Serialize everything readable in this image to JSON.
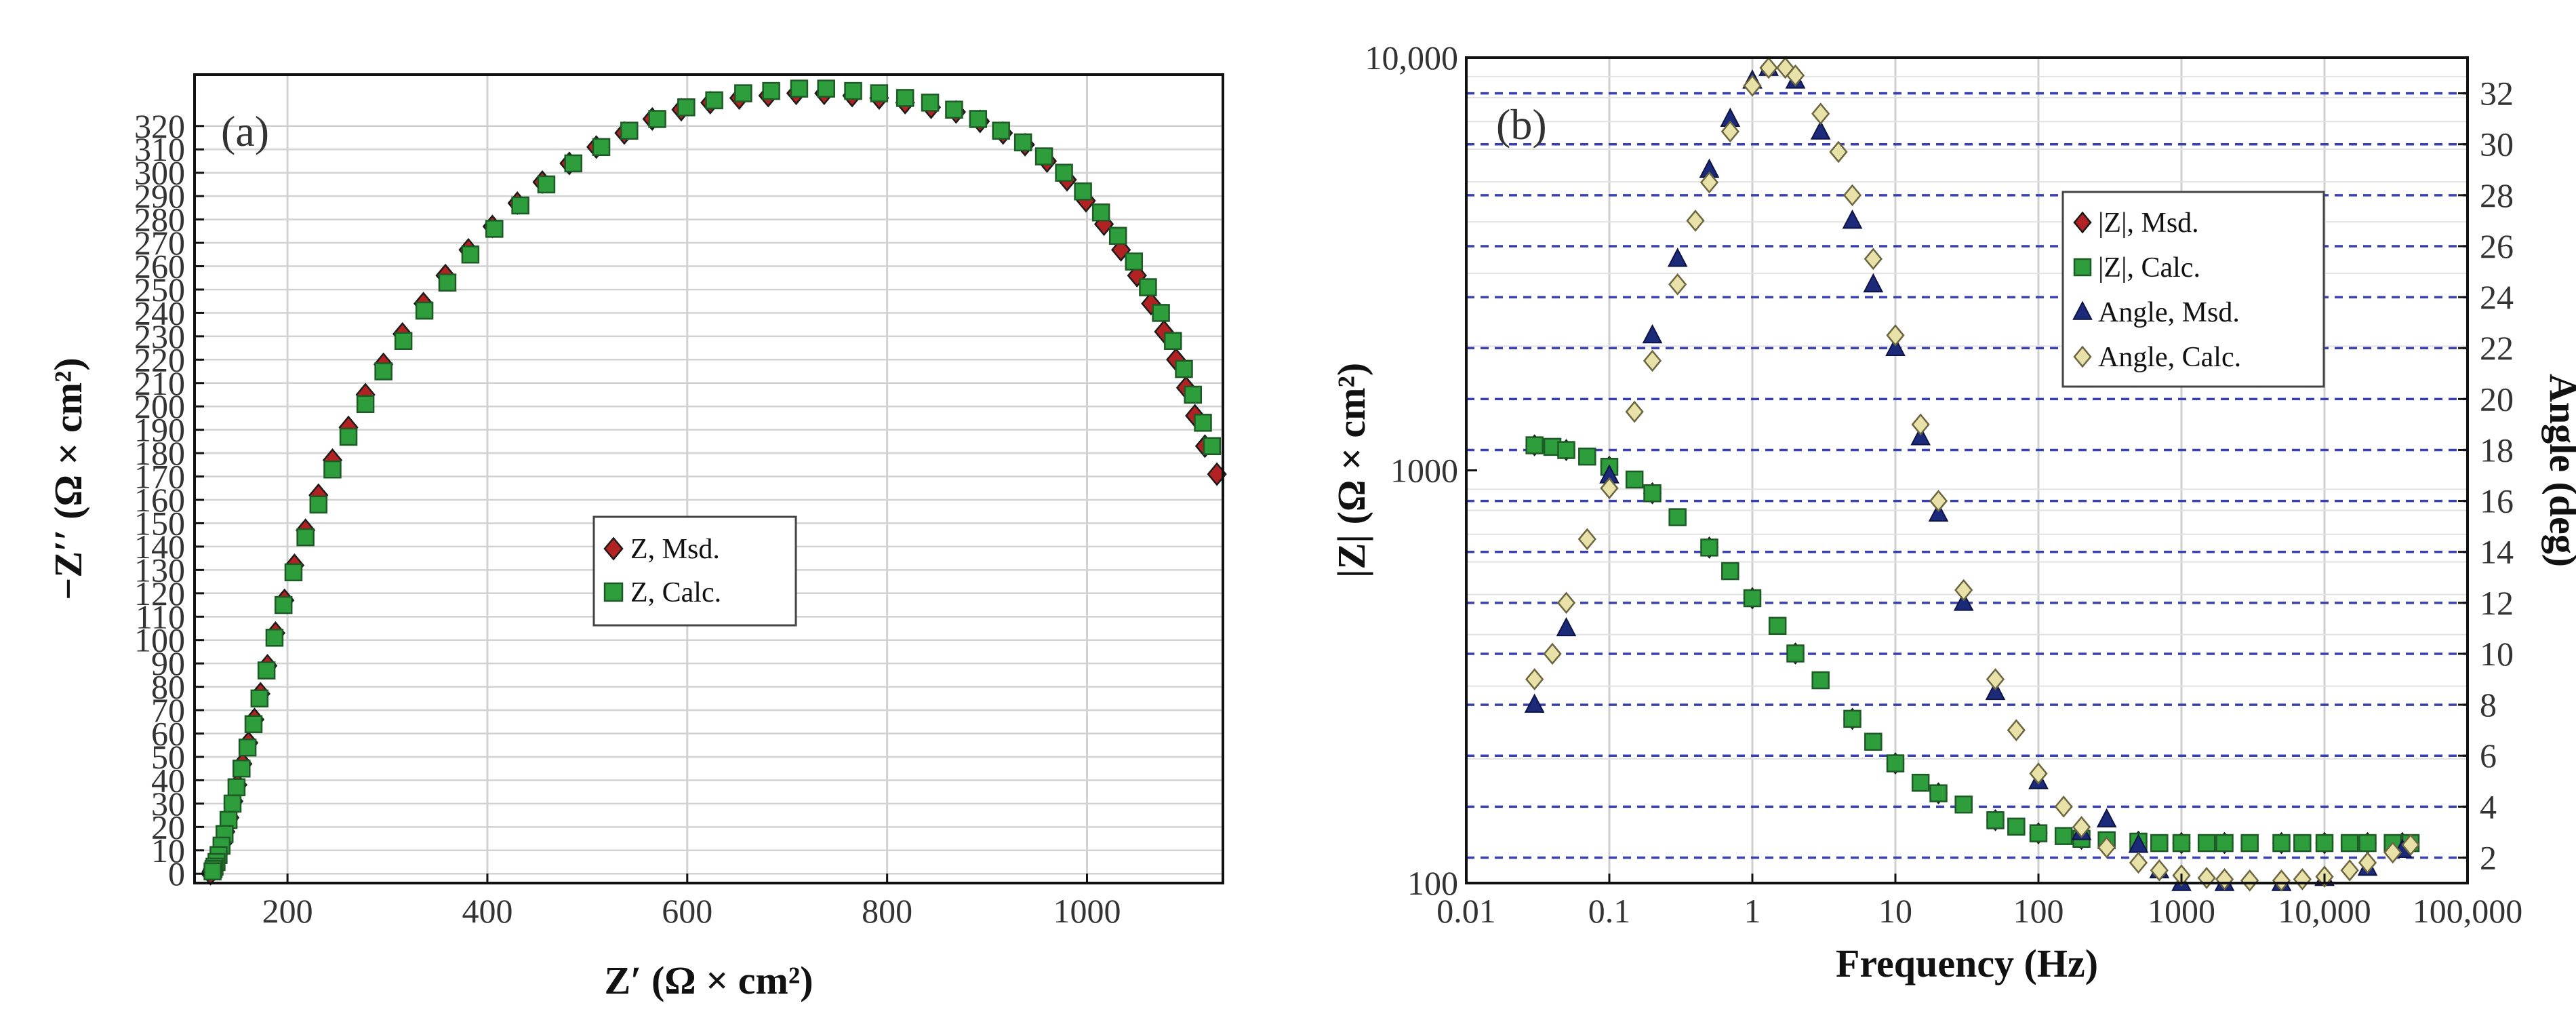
{
  "chart_data": [
    {
      "type": "scatter",
      "panel_label": "(a)",
      "xlabel": "Z′ (Ω × cm²)",
      "ylabel": "−Z′′ (Ω × cm²)",
      "xlim": [
        107,
        1136
      ],
      "ylim": [
        -4,
        342
      ],
      "xticks": [
        200,
        400,
        600,
        800,
        1000
      ],
      "xtick_labels": [
        "200",
        "400",
        "600",
        "800",
        "1000"
      ],
      "yticks": [
        0,
        10,
        20,
        30,
        40,
        50,
        60,
        70,
        80,
        90,
        100,
        110,
        120,
        130,
        140,
        150,
        160,
        170,
        180,
        190,
        200,
        210,
        220,
        230,
        240,
        250,
        260,
        270,
        280,
        290,
        300,
        310,
        320
      ],
      "ytick_labels": [
        "0",
        "10",
        "20",
        "30",
        "40",
        "50",
        "60",
        "70",
        "80",
        "90",
        "100",
        "110",
        "120",
        "130",
        "140",
        "150",
        "160",
        "170",
        "180",
        "190",
        "200",
        "210",
        "220",
        "230",
        "240",
        "250",
        "260",
        "270",
        "280",
        "290",
        "300",
        "310",
        "320"
      ],
      "grid": true,
      "legend_position": "center",
      "series": [
        {
          "name": "Z, Msd.",
          "marker": "diamond",
          "color": "#b22222",
          "x": [
            1130,
            1118,
            1108,
            1099,
            1089,
            1077,
            1064,
            1050,
            1034,
            1017,
            999,
            980,
            960,
            938,
            916,
            893,
            869,
            844,
            818,
            792,
            765,
            737,
            709,
            681,
            652,
            623,
            594,
            565,
            537,
            509,
            482,
            455,
            430,
            405,
            381,
            358,
            336,
            315,
            296,
            278,
            261,
            245,
            231,
            218,
            207,
            197,
            188,
            180,
            173,
            167,
            161,
            155,
            150,
            146,
            142,
            138,
            135,
            132,
            130,
            128,
            126,
            125,
            124,
            123
          ],
          "y": [
            171,
            183,
            196,
            208,
            220,
            232,
            244,
            256,
            267,
            278,
            288,
            297,
            305,
            312,
            317,
            322,
            326,
            328,
            330,
            332,
            333,
            334,
            334,
            333,
            332,
            330,
            327,
            323,
            317,
            311,
            304,
            296,
            287,
            277,
            267,
            256,
            244,
            231,
            218,
            205,
            191,
            177,
            162,
            147,
            132,
            117,
            103,
            89,
            77,
            66,
            56,
            47,
            38,
            31,
            24,
            18,
            13,
            9,
            6,
            4,
            3,
            2,
            1,
            0
          ]
        },
        {
          "name": "Z, Calc.",
          "marker": "square",
          "color": "#2e9e3c",
          "x": [
            1125,
            1116,
            1106,
            1097,
            1086,
            1074,
            1061,
            1047,
            1031,
            1014,
            996,
            977,
            957,
            936,
            914,
            891,
            867,
            843,
            818,
            792,
            766,
            739,
            712,
            684,
            656,
            627,
            599,
            570,
            542,
            514,
            486,
            459,
            433,
            407,
            383,
            360,
            337,
            316,
            296,
            278,
            261,
            245,
            231,
            218,
            206,
            196,
            187,
            179,
            172,
            166,
            160,
            154,
            149,
            145,
            141,
            137,
            134,
            131,
            129,
            127,
            126,
            125
          ],
          "y": [
            183,
            193,
            205,
            216,
            228,
            240,
            251,
            262,
            273,
            283,
            292,
            300,
            307,
            313,
            318,
            323,
            327,
            330,
            332,
            334,
            335,
            336,
            336,
            335,
            334,
            331,
            328,
            323,
            318,
            311,
            304,
            295,
            286,
            276,
            265,
            253,
            241,
            228,
            215,
            201,
            187,
            173,
            158,
            144,
            129,
            115,
            101,
            87,
            75,
            64,
            54,
            45,
            37,
            30,
            23,
            17,
            12,
            8,
            5,
            3,
            2,
            1
          ]
        }
      ]
    },
    {
      "type": "scatter",
      "panel_label": "(b)",
      "xlabel": "Frequency (Hz)",
      "ylabel": "|Z| (Ω × cm²)",
      "y2label": "Angle (deg)",
      "xscale": "log",
      "yscale": "log",
      "xlim": [
        0.01,
        100000
      ],
      "ylim": [
        100,
        10000
      ],
      "y2lim": [
        1,
        33.4
      ],
      "xticks": [
        0.01,
        0.1,
        1,
        10,
        100,
        1000,
        10000,
        100000
      ],
      "xtick_labels": [
        "0.01",
        "0.1",
        "1",
        "10",
        "100",
        "1000",
        "10,000",
        "100,000"
      ],
      "yticks": [
        100,
        1000,
        10000
      ],
      "ytick_labels": [
        "100",
        "1000",
        "10,000"
      ],
      "y2ticks": [
        2,
        4,
        6,
        8,
        10,
        12,
        14,
        16,
        18,
        20,
        22,
        24,
        26,
        28,
        30,
        32
      ],
      "y2tick_labels": [
        "2",
        "4",
        "6",
        "8",
        "10",
        "12",
        "14",
        "16",
        "18",
        "20",
        "22",
        "24",
        "26",
        "28",
        "30",
        "32"
      ],
      "grid": true,
      "legend_position": "right",
      "series": [
        {
          "name": "|Z|, Msd.",
          "marker": "diamond",
          "color": "#b22222",
          "axis": "left",
          "x": [
            0.03,
            0.05,
            0.1,
            0.2,
            0.5,
            1,
            2,
            5,
            10,
            20,
            50,
            100,
            200,
            500,
            1000,
            2000,
            5000,
            10000,
            20000,
            35000
          ],
          "y": [
            1150,
            1120,
            1020,
            880,
            650,
            490,
            360,
            250,
            195,
            165,
            142,
            132,
            128,
            126,
            125,
            125,
            125,
            125,
            125,
            125
          ]
        },
        {
          "name": "|Z|, Calc.",
          "marker": "square",
          "color": "#2e9e3c",
          "axis": "left",
          "x": [
            0.03,
            0.04,
            0.05,
            0.07,
            0.1,
            0.15,
            0.2,
            0.3,
            0.5,
            0.7,
            1,
            1.5,
            2,
            3,
            5,
            7,
            10,
            15,
            20,
            30,
            50,
            70,
            100,
            150,
            200,
            300,
            500,
            700,
            1000,
            1500,
            2000,
            3000,
            5000,
            7000,
            10000,
            15000,
            20000,
            30000,
            40000
          ],
          "y": [
            1150,
            1140,
            1120,
            1080,
            1020,
            950,
            880,
            770,
            650,
            570,
            490,
            420,
            360,
            310,
            250,
            220,
            195,
            175,
            165,
            155,
            142,
            137,
            132,
            130,
            128,
            127,
            126,
            125,
            125,
            125,
            125,
            125,
            125,
            125,
            125,
            125,
            125,
            125,
            125
          ]
        },
        {
          "name": "Angle, Msd.",
          "marker": "triangle",
          "color": "#1c2a7a",
          "axis": "right",
          "x": [
            0.03,
            0.05,
            0.1,
            0.2,
            0.3,
            0.5,
            0.7,
            1,
            1.3,
            2,
            3,
            5,
            7,
            10,
            15,
            20,
            30,
            50,
            100,
            200,
            300,
            500,
            700,
            1000,
            2000,
            5000,
            10000,
            20000,
            35000
          ],
          "y": [
            8,
            11,
            17,
            22.5,
            25.5,
            29,
            31,
            32.5,
            33,
            32.5,
            30.5,
            27,
            24.5,
            22,
            18.5,
            15.5,
            12,
            8.5,
            5,
            3,
            3.5,
            2.5,
            1.5,
            1,
            1,
            1,
            1.2,
            1.6,
            2.3
          ]
        },
        {
          "name": "Angle, Calc.",
          "marker": "diamond-open",
          "color": "#e8e2a8",
          "axis": "right",
          "x": [
            0.03,
            0.04,
            0.05,
            0.07,
            0.1,
            0.15,
            0.2,
            0.3,
            0.4,
            0.5,
            0.7,
            1,
            1.3,
            1.7,
            2,
            3,
            4,
            5,
            7,
            10,
            15,
            20,
            30,
            50,
            70,
            100,
            150,
            200,
            300,
            500,
            700,
            1000,
            1500,
            2000,
            3000,
            5000,
            7000,
            10000,
            15000,
            20000,
            30000,
            40000
          ],
          "y": [
            9,
            10,
            12,
            14.5,
            16.5,
            19.5,
            21.5,
            24.5,
            27,
            28.5,
            30.5,
            32.3,
            33,
            33,
            32.7,
            31.2,
            29.7,
            28,
            25.5,
            22.5,
            19,
            16,
            12.5,
            9,
            7,
            5.3,
            4,
            3.2,
            2.4,
            1.8,
            1.5,
            1.3,
            1.2,
            1.15,
            1.1,
            1.1,
            1.15,
            1.25,
            1.5,
            1.8,
            2.2,
            2.5
          ]
        }
      ]
    }
  ]
}
